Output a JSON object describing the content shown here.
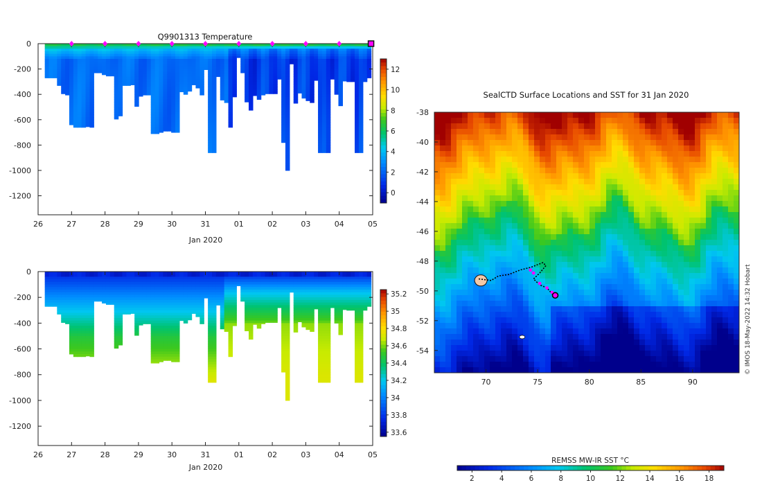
{
  "title_temperature": "Q9901313  Temperature",
  "time_axis": {
    "ticks": [
      "26",
      "27",
      "28",
      "29",
      "30",
      "31",
      "01",
      "02",
      "03",
      "04",
      "05"
    ],
    "label": "Jan 2020"
  },
  "depth_axis": {
    "ticks": [
      "0",
      "-200",
      "-400",
      "-600",
      "-800",
      "-1000",
      "-1200"
    ]
  },
  "temp_colorbar": {
    "ticks": [
      "0",
      "2",
      "4",
      "6",
      "8",
      "10",
      "12"
    ]
  },
  "sal_colorbar": {
    "ticks": [
      "33.6",
      "33.8",
      "34",
      "34.2",
      "34.4",
      "34.6",
      "34.8",
      "35",
      "35.2"
    ]
  },
  "map": {
    "title": "SealCTD Surface Locations and SST for 31 Jan 2020",
    "lat_ticks": [
      "-38",
      "-40",
      "-42",
      "-44",
      "-46",
      "-48",
      "-50",
      "-52",
      "-54"
    ],
    "lon_ticks": [
      "70",
      "75",
      "80",
      "85",
      "90"
    ],
    "sst_colorbar_label": "REMSS MW-IR SST °C",
    "sst_ticks": [
      "2",
      "4",
      "6",
      "8",
      "10",
      "12",
      "14",
      "16",
      "18"
    ],
    "credit": "© IMOS 18-May-2022 14:32 Hobart"
  },
  "chart_data": [
    {
      "type": "heatmap",
      "variable": "temperature",
      "title": "Q9901313  Temperature",
      "xlabel": "Jan 2020",
      "x_range_days": [
        26,
        36
      ],
      "ylim": [
        -1350,
        0
      ],
      "colorbar_range": [
        -1,
        13
      ],
      "profile_max_depth": [
        270,
        270,
        270,
        330,
        395,
        405,
        640,
        660,
        660,
        660,
        655,
        660,
        230,
        230,
        245,
        255,
        255,
        595,
        570,
        330,
        330,
        325,
        495,
        415,
        405,
        405,
        710,
        710,
        700,
        690,
        690,
        700,
        700,
        380,
        400,
        375,
        325,
        350,
        405,
        205,
        860,
        860,
        260,
        445,
        465,
        660,
        420,
        110,
        230,
        460,
        525,
        410,
        440,
        405,
        395,
        395,
        395,
        280,
        780,
        1000,
        160,
        470,
        390,
        430,
        450,
        465,
        290,
        860,
        860,
        860,
        280,
        400,
        490,
        295,
        300,
        300,
        860,
        860,
        300,
        270
      ],
      "surface_markers_days": [
        27,
        28,
        29,
        30,
        31,
        32,
        33,
        34,
        35
      ],
      "current_marker_day": 35.95
    },
    {
      "type": "heatmap",
      "variable": "salinity",
      "xlabel": "Jan 2020",
      "x_range_days": [
        26,
        36
      ],
      "ylim": [
        -1350,
        0
      ],
      "colorbar_range": [
        33.55,
        35.25
      ]
    },
    {
      "type": "scatter",
      "variable": "track_on_sst_map",
      "title": "SealCTD Surface Locations and SST for 31 Jan 2020",
      "xlim": [
        65,
        94.5
      ],
      "ylim": [
        -55.5,
        -38
      ],
      "track": [
        [
          69.3,
          -49.2
        ],
        [
          70.5,
          -49.3
        ],
        [
          71.2,
          -49.0
        ],
        [
          72.2,
          -48.9
        ],
        [
          73.3,
          -48.6
        ],
        [
          74.4,
          -48.4
        ],
        [
          75.5,
          -48.1
        ],
        [
          75.8,
          -48.3
        ],
        [
          75.2,
          -48.8
        ],
        [
          74.6,
          -49.2
        ],
        [
          75.2,
          -49.6
        ],
        [
          75.9,
          -49.8
        ],
        [
          76.4,
          -50.2
        ],
        [
          76.7,
          -50.3
        ]
      ],
      "profiles": [
        [
          74.3,
          -48.6
        ],
        [
          74.6,
          -48.8
        ],
        [
          75.2,
          -49.5
        ],
        [
          75.9,
          -49.8
        ],
        [
          76.4,
          -50.1
        ]
      ],
      "current_position": [
        76.7,
        -50.3
      ]
    }
  ]
}
